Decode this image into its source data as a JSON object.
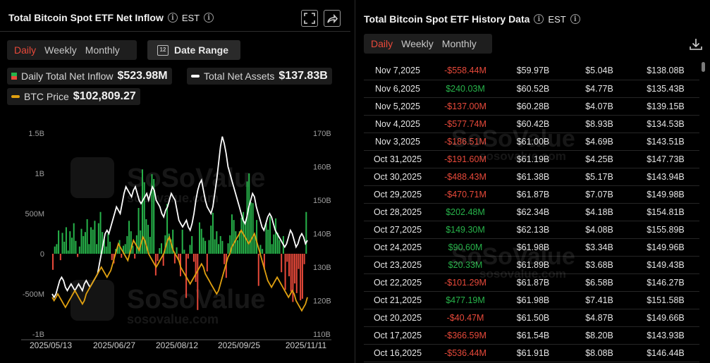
{
  "left_panel": {
    "title": "Total Bitcoin Spot ETF Net Inflow",
    "timezone": "EST",
    "tabs": [
      {
        "label": "Daily",
        "active": true
      },
      {
        "label": "Weekly",
        "active": false
      },
      {
        "label": "Monthly",
        "active": false
      }
    ],
    "date_range_label": "Date Range",
    "legend": [
      {
        "label": "Daily Total Net Inflow",
        "value": "$523.98M"
      },
      {
        "label": "Total Net Assets",
        "value": "$137.83B"
      },
      {
        "label": "BTC Price",
        "value": "$102,809.27"
      }
    ],
    "watermark": {
      "brand": "SoSoValue",
      "url": "sosovalue.com"
    }
  },
  "colors": {
    "inflow_pos": "#27b34a",
    "inflow_neg": "#e8493a",
    "net_assets": "#ffffff",
    "btc_price": "#e0a010",
    "accent": "#e8493a"
  },
  "chart_data": {
    "type": "bar+line",
    "x_ticks": [
      "2025/05/13",
      "2025/06/27",
      "2025/08/12",
      "2025/09/25",
      "2025/11/11"
    ],
    "y_left": {
      "ticks": [
        "1.5B",
        "1B",
        "500M",
        "0",
        "-500M",
        "-1B"
      ],
      "range": [
        -1000,
        1500
      ],
      "unit": "M"
    },
    "y_right": {
      "ticks": [
        "170B",
        "160B",
        "150B",
        "140B",
        "130B",
        "120B",
        "110B"
      ],
      "range": [
        110,
        170
      ],
      "unit": "B"
    },
    "series": [
      {
        "name": "Daily Total Net Inflow",
        "kind": "bar",
        "unit": "M",
        "values": [
          -200,
          90,
          120,
          290,
          -80,
          260,
          150,
          330,
          40,
          280,
          200,
          380,
          160,
          -40,
          90,
          310,
          220,
          270,
          430,
          120,
          330,
          300,
          410,
          120,
          380,
          520,
          270,
          180,
          90,
          250,
          150,
          -80,
          -120,
          60,
          90,
          170,
          -50,
          100,
          120,
          220,
          410,
          280,
          100,
          -60,
          230,
          570,
          290,
          1050,
          890,
          430,
          360,
          210,
          990,
          930,
          -270,
          -90,
          70,
          130,
          -150,
          230,
          620,
          250,
          180,
          300,
          -120,
          80,
          -80,
          -280,
          300,
          50,
          -550,
          -60,
          110,
          220,
          -100,
          -350,
          -700,
          390,
          310,
          200,
          160,
          -220,
          170,
          350,
          510,
          180,
          280,
          120,
          220,
          160,
          -130,
          -300,
          130,
          230,
          490,
          420,
          280,
          170,
          280,
          450,
          520,
          400,
          900,
          1000,
          640,
          630,
          240,
          420,
          -400,
          110,
          60,
          -190,
          380,
          300,
          460,
          120,
          240,
          440,
          260,
          170,
          -230,
          220,
          -450,
          -100,
          -280,
          -470,
          -600,
          -370,
          -490,
          -190,
          -580,
          -560,
          -130,
          520
        ]
      },
      {
        "name": "Total Net Assets",
        "kind": "line",
        "unit": "B",
        "values": [
          122,
          121,
          122,
          124,
          126,
          127,
          126,
          124,
          123,
          124,
          125,
          124,
          123,
          124,
          125,
          124,
          123,
          125,
          126,
          125,
          124,
          125,
          126,
          127,
          128,
          131,
          134,
          137,
          140,
          141,
          140,
          142,
          144,
          146,
          148,
          147,
          146,
          149,
          152,
          154,
          153,
          152,
          151,
          153,
          154,
          152,
          150,
          149,
          150,
          151,
          152,
          150,
          152,
          154,
          153,
          150,
          149,
          148,
          146,
          145,
          147,
          148,
          150,
          152,
          151,
          150,
          147,
          144,
          143,
          142,
          143,
          144,
          142,
          141,
          143,
          146,
          150,
          153,
          155,
          156,
          153,
          150,
          148,
          147,
          146,
          148,
          152,
          156,
          161,
          166,
          169,
          167,
          164,
          160,
          158,
          156,
          154,
          152,
          150,
          148,
          146,
          144,
          143,
          145,
          148,
          150,
          152,
          151,
          148,
          146,
          144,
          142,
          141,
          143,
          145,
          146,
          145,
          143,
          141,
          140,
          139,
          138,
          137,
          136,
          137,
          139,
          141,
          140,
          138,
          136,
          137,
          139,
          140,
          139,
          137,
          138
        ]
      },
      {
        "name": "BTC Price",
        "kind": "line",
        "unit": "B_right_axis_scale",
        "values": [
          121,
          120,
          121,
          122,
          121,
          120,
          119,
          118,
          119,
          120,
          121,
          122,
          123,
          122,
          121,
          120,
          119,
          120,
          122,
          123,
          124,
          125,
          126,
          127,
          128,
          129,
          130,
          129,
          128,
          127,
          128,
          129,
          131,
          133,
          135,
          137,
          136,
          135,
          134,
          133,
          132,
          134,
          136,
          138,
          137,
          136,
          135,
          137,
          139,
          138,
          136,
          134,
          133,
          132,
          131,
          130,
          131,
          132,
          133,
          134,
          136,
          138,
          139,
          137,
          135,
          134,
          133,
          132,
          130,
          129,
          128,
          127,
          126,
          125,
          126,
          127,
          128,
          129,
          130,
          131,
          130,
          128,
          127,
          126,
          125,
          124,
          123,
          122,
          123,
          125,
          127,
          129,
          131,
          133,
          134,
          136,
          137,
          138,
          139,
          140,
          141,
          140,
          139,
          138,
          137,
          138,
          139,
          140,
          138,
          136,
          134,
          132,
          130,
          128,
          126,
          125,
          124,
          125,
          126,
          127,
          126,
          125,
          124,
          123,
          122,
          121,
          122,
          123,
          122,
          120,
          119,
          118,
          117,
          118,
          119,
          121
        ]
      }
    ]
  },
  "right_panel": {
    "title": "Total Bitcoin Spot ETF History Data",
    "timezone": "EST",
    "tabs": [
      {
        "label": "Daily",
        "active": true
      },
      {
        "label": "Weekly",
        "active": false
      },
      {
        "label": "Monthly",
        "active": false
      }
    ],
    "rows": [
      {
        "date": "Nov 7,2025",
        "inflow": "-$558.44M",
        "dir": "neg",
        "c3": "$59.97B",
        "c4": "$5.04B",
        "c5": "$138.08B"
      },
      {
        "date": "Nov 6,2025",
        "inflow": "$240.03M",
        "dir": "pos",
        "c3": "$60.52B",
        "c4": "$4.77B",
        "c5": "$135.43B"
      },
      {
        "date": "Nov 5,2025",
        "inflow": "-$137.00M",
        "dir": "neg",
        "c3": "$60.28B",
        "c4": "$4.07B",
        "c5": "$139.15B"
      },
      {
        "date": "Nov 4,2025",
        "inflow": "-$577.74M",
        "dir": "neg",
        "c3": "$60.42B",
        "c4": "$8.93B",
        "c5": "$134.53B"
      },
      {
        "date": "Nov 3,2025",
        "inflow": "-$186.51M",
        "dir": "neg",
        "c3": "$61.00B",
        "c4": "$4.69B",
        "c5": "$143.51B"
      },
      {
        "date": "Oct 31,2025",
        "inflow": "-$191.60M",
        "dir": "neg",
        "c3": "$61.19B",
        "c4": "$4.25B",
        "c5": "$147.73B"
      },
      {
        "date": "Oct 30,2025",
        "inflow": "-$488.43M",
        "dir": "neg",
        "c3": "$61.38B",
        "c4": "$5.17B",
        "c5": "$143.94B"
      },
      {
        "date": "Oct 29,2025",
        "inflow": "-$470.71M",
        "dir": "neg",
        "c3": "$61.87B",
        "c4": "$7.07B",
        "c5": "$149.98B"
      },
      {
        "date": "Oct 28,2025",
        "inflow": "$202.48M",
        "dir": "pos",
        "c3": "$62.34B",
        "c4": "$4.18B",
        "c5": "$154.81B"
      },
      {
        "date": "Oct 27,2025",
        "inflow": "$149.30M",
        "dir": "pos",
        "c3": "$62.13B",
        "c4": "$4.08B",
        "c5": "$155.89B"
      },
      {
        "date": "Oct 24,2025",
        "inflow": "$90.60M",
        "dir": "pos",
        "c3": "$61.98B",
        "c4": "$3.34B",
        "c5": "$149.96B"
      },
      {
        "date": "Oct 23,2025",
        "inflow": "$20.33M",
        "dir": "pos",
        "c3": "$61.89B",
        "c4": "$3.68B",
        "c5": "$149.43B"
      },
      {
        "date": "Oct 22,2025",
        "inflow": "-$101.29M",
        "dir": "neg",
        "c3": "$61.87B",
        "c4": "$6.58B",
        "c5": "$146.27B"
      },
      {
        "date": "Oct 21,2025",
        "inflow": "$477.19M",
        "dir": "pos",
        "c3": "$61.98B",
        "c4": "$7.41B",
        "c5": "$151.58B"
      },
      {
        "date": "Oct 20,2025",
        "inflow": "-$40.47M",
        "dir": "neg",
        "c3": "$61.50B",
        "c4": "$4.87B",
        "c5": "$149.66B"
      },
      {
        "date": "Oct 17,2025",
        "inflow": "-$366.59M",
        "dir": "neg",
        "c3": "$61.54B",
        "c4": "$8.20B",
        "c5": "$143.93B"
      },
      {
        "date": "Oct 16,2025",
        "inflow": "-$536.44M",
        "dir": "neg",
        "c3": "$61.91B",
        "c4": "$8.08B",
        "c5": "$146.44B"
      }
    ]
  }
}
